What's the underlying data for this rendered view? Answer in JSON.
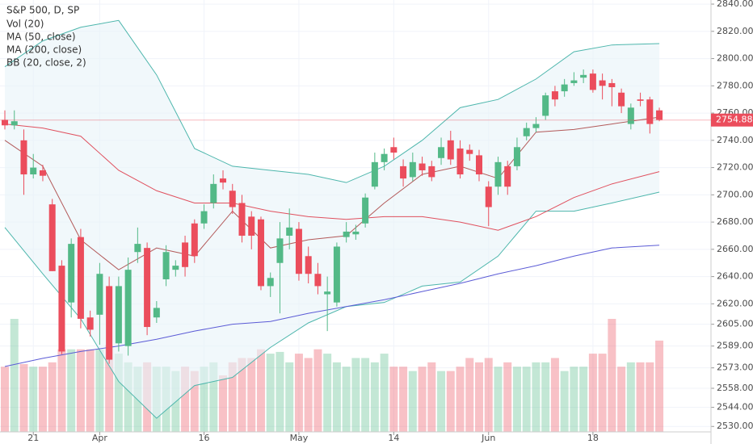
{
  "chart_data": {
    "type": "candlestick",
    "title": "S&P 500, D, SP",
    "volume_name": "Vol (20)",
    "categories": [
      null,
      null,
      null,
      "21",
      null,
      null,
      null,
      null,
      null,
      null,
      "Apr",
      null,
      null,
      null,
      null,
      null,
      null,
      null,
      null,
      null,
      null,
      "16",
      null,
      null,
      null,
      null,
      null,
      null,
      null,
      null,
      null,
      "May",
      null,
      null,
      null,
      null,
      null,
      null,
      null,
      null,
      null,
      "14",
      null,
      null,
      null,
      null,
      null,
      null,
      null,
      null,
      null,
      "Jun",
      null,
      null,
      null,
      null,
      null,
      null,
      null,
      null,
      null,
      null,
      "18",
      null,
      null,
      null,
      null,
      null,
      null,
      null
    ],
    "ohlc": [
      [
        2755,
        2762,
        2748,
        2751
      ],
      [
        2751,
        2762,
        2748,
        2754
      ],
      [
        2740,
        2748,
        2700,
        2715
      ],
      [
        2715,
        2730,
        2712,
        2720
      ],
      [
        2718,
        2722,
        2710,
        2714
      ],
      [
        2693,
        2697,
        2644,
        2644
      ],
      [
        2648,
        2652,
        2583,
        2585
      ],
      [
        2621,
        2668,
        2610,
        2664
      ],
      [
        2669,
        2675,
        2602,
        2609
      ],
      [
        2610,
        2615,
        2596,
        2601
      ],
      [
        2612,
        2650,
        2590,
        2642
      ],
      [
        2633,
        2640,
        2576,
        2579
      ],
      [
        2591,
        2640,
        2585,
        2633
      ],
      [
        2589,
        2654,
        2582,
        2645
      ],
      [
        2658,
        2676,
        2650,
        2664
      ],
      [
        2661,
        2665,
        2597,
        2603
      ],
      [
        2610,
        2622,
        2606,
        2617
      ],
      [
        2638,
        2663,
        2633,
        2658
      ],
      [
        2645,
        2652,
        2640,
        2648
      ],
      [
        2665,
        2670,
        2640,
        2647
      ],
      [
        2679,
        2682,
        2650,
        2655
      ],
      [
        2679,
        2693,
        2675,
        2688
      ],
      [
        2694,
        2715,
        2690,
        2708
      ],
      [
        2712,
        2718,
        2704,
        2709
      ],
      [
        2703,
        2708,
        2686,
        2691
      ],
      [
        2694,
        2700,
        2665,
        2670
      ],
      [
        2684,
        2688,
        2660,
        2670
      ],
      [
        2682,
        2684,
        2630,
        2633
      ],
      [
        2633,
        2643,
        2625,
        2639
      ],
      [
        2650,
        2680,
        2613,
        2668
      ],
      [
        2670,
        2690,
        2660,
        2676
      ],
      [
        2675,
        2680,
        2637,
        2642
      ],
      [
        2655,
        2662,
        2635,
        2642
      ],
      [
        2642,
        2650,
        2627,
        2633
      ],
      [
        2627,
        2640,
        2600,
        2629
      ],
      [
        2621,
        2665,
        2618,
        2662
      ],
      [
        2669,
        2680,
        2665,
        2673
      ],
      [
        2671,
        2678,
        2667,
        2673
      ],
      [
        2679,
        2701,
        2676,
        2698
      ],
      [
        2706,
        2731,
        2704,
        2724
      ],
      [
        2724,
        2734,
        2718,
        2730
      ],
      [
        2735,
        2742,
        2726,
        2731
      ],
      [
        2721,
        2726,
        2706,
        2712
      ],
      [
        2713,
        2731,
        2710,
        2724
      ],
      [
        2723,
        2728,
        2714,
        2718
      ],
      [
        2721,
        2725,
        2710,
        2713
      ],
      [
        2727,
        2742,
        2722,
        2735
      ],
      [
        2740,
        2747,
        2722,
        2726
      ],
      [
        2734,
        2740,
        2712,
        2715
      ],
      [
        2733,
        2737,
        2725,
        2730
      ],
      [
        2729,
        2733,
        2710,
        2715
      ],
      [
        2706,
        2710,
        2677,
        2691
      ],
      [
        2706,
        2728,
        2700,
        2724
      ],
      [
        2721,
        2725,
        2700,
        2706
      ],
      [
        2721,
        2742,
        2718,
        2735
      ],
      [
        2743,
        2753,
        2740,
        2749
      ],
      [
        2749,
        2757,
        2746,
        2752
      ],
      [
        2758,
        2775,
        2755,
        2773
      ],
      [
        2776,
        2780,
        2765,
        2770
      ],
      [
        2776,
        2785,
        2772,
        2781
      ],
      [
        2782,
        2790,
        2780,
        2784
      ],
      [
        2786,
        2792,
        2782,
        2788
      ],
      [
        2789,
        2792,
        2775,
        2777
      ],
      [
        2784,
        2789,
        2770,
        2780
      ],
      [
        2782,
        2785,
        2765,
        2779
      ],
      [
        2775,
        2778,
        2760,
        2765
      ],
      [
        2752,
        2767,
        2748,
        2764
      ],
      [
        2770,
        2775,
        2765,
        2769
      ],
      [
        2770,
        2772,
        2745,
        2752
      ],
      [
        2762,
        2764,
        2754,
        2755
      ]
    ],
    "volume": [
      3000,
      5200,
      3120,
      3000,
      3000,
      3200,
      3800,
      3800,
      3800,
      3800,
      3800,
      4000,
      3600,
      3200,
      3000,
      3200,
      3000,
      3000,
      2800,
      3000,
      2800,
      3000,
      3200,
      2600,
      3200,
      3400,
      3400,
      3800,
      3600,
      3680,
      3200,
      3600,
      3400,
      3800,
      3600,
      3200,
      3000,
      3400,
      3400,
      3200,
      3600,
      3000,
      3000,
      2800,
      3000,
      3200,
      2800,
      2800,
      3000,
      3400,
      3200,
      3400,
      3000,
      3200,
      3000,
      3000,
      3200,
      3200,
      3400,
      2800,
      3000,
      3000,
      3600,
      3600,
      5200,
      3000,
      3200,
      3200,
      3200,
      4200
    ],
    "up_color": "#53b987",
    "down_color": "#eb4d5c",
    "overlays": [
      {
        "name": "MA (50, close)",
        "color": "#e0505e",
        "x": [
          0,
          4,
          8,
          12,
          16,
          20,
          24,
          28,
          32,
          36,
          40,
          44,
          48,
          52,
          56,
          60,
          64,
          69
        ],
        "values": [
          2752,
          2749,
          2743,
          2718,
          2703,
          2694,
          2694,
          2688,
          2684,
          2682,
          2684,
          2684,
          2680,
          2674,
          2684,
          2698,
          2708,
          2717
        ]
      },
      {
        "name": "MA (200, close)",
        "color": "#5b5bd6",
        "x": [
          0,
          4,
          8,
          12,
          16,
          20,
          24,
          28,
          32,
          36,
          40,
          44,
          48,
          52,
          56,
          60,
          64,
          69
        ],
        "values": [
          2574,
          2580,
          2585,
          2589,
          2594,
          2600,
          2605,
          2607,
          2613,
          2618,
          2623,
          2629,
          2635,
          2642,
          2648,
          2655,
          2661,
          2663
        ]
      }
    ],
    "bands": {
      "name": "BB (20, close, 2)",
      "color": "#4db6ac",
      "basis_color": "#b35a5a",
      "fill": "#e8f4f8",
      "x": [
        0,
        4,
        8,
        12,
        16,
        20,
        24,
        28,
        32,
        36,
        40,
        44,
        48,
        52,
        56,
        60,
        64,
        69
      ],
      "upper": [
        2794,
        2813,
        2823,
        2828,
        2788,
        2734,
        2721,
        2718,
        2715,
        2709,
        2721,
        2740,
        2764,
        2770,
        2785,
        2805,
        2810,
        2811
      ],
      "basis": [
        2740,
        2721,
        2667,
        2645,
        2661,
        2655,
        2688,
        2661,
        2667,
        2670,
        2694,
        2715,
        2721,
        2712,
        2746,
        2748,
        2752,
        2757
      ],
      "lower": [
        2676,
        2642,
        2609,
        2563,
        2536,
        2560,
        2566,
        2588,
        2606,
        2618,
        2621,
        2633,
        2636,
        2655,
        2688,
        2688,
        2694,
        2702
      ]
    },
    "last_price": 2754.88,
    "ylim": [
      2526,
      2843
    ],
    "yticks": [
      {
        "value": 2840,
        "label": "2840.00"
      },
      {
        "value": 2820,
        "label": "2820.00"
      },
      {
        "value": 2800,
        "label": "2800.00"
      },
      {
        "value": 2780,
        "label": "2780.00"
      },
      {
        "value": 2760,
        "label": "2760.00"
      },
      {
        "value": 2740,
        "label": "2740.00"
      },
      {
        "value": 2720,
        "label": "2720.00"
      },
      {
        "value": 2700,
        "label": "2700.00"
      },
      {
        "value": 2680,
        "label": "2680.00"
      },
      {
        "value": 2660,
        "label": "2660.00"
      },
      {
        "value": 2640,
        "label": "2640.00"
      },
      {
        "value": 2620,
        "label": "2620.00"
      },
      {
        "value": 2605,
        "label": "2605.00"
      },
      {
        "value": 2589,
        "label": "2589.00"
      },
      {
        "value": 2573,
        "label": "2573.00"
      },
      {
        "value": 2558,
        "label": "2558.00"
      },
      {
        "value": 2544,
        "label": "2544.00"
      },
      {
        "value": 2530,
        "label": "2530.00"
      }
    ],
    "grid": true
  }
}
